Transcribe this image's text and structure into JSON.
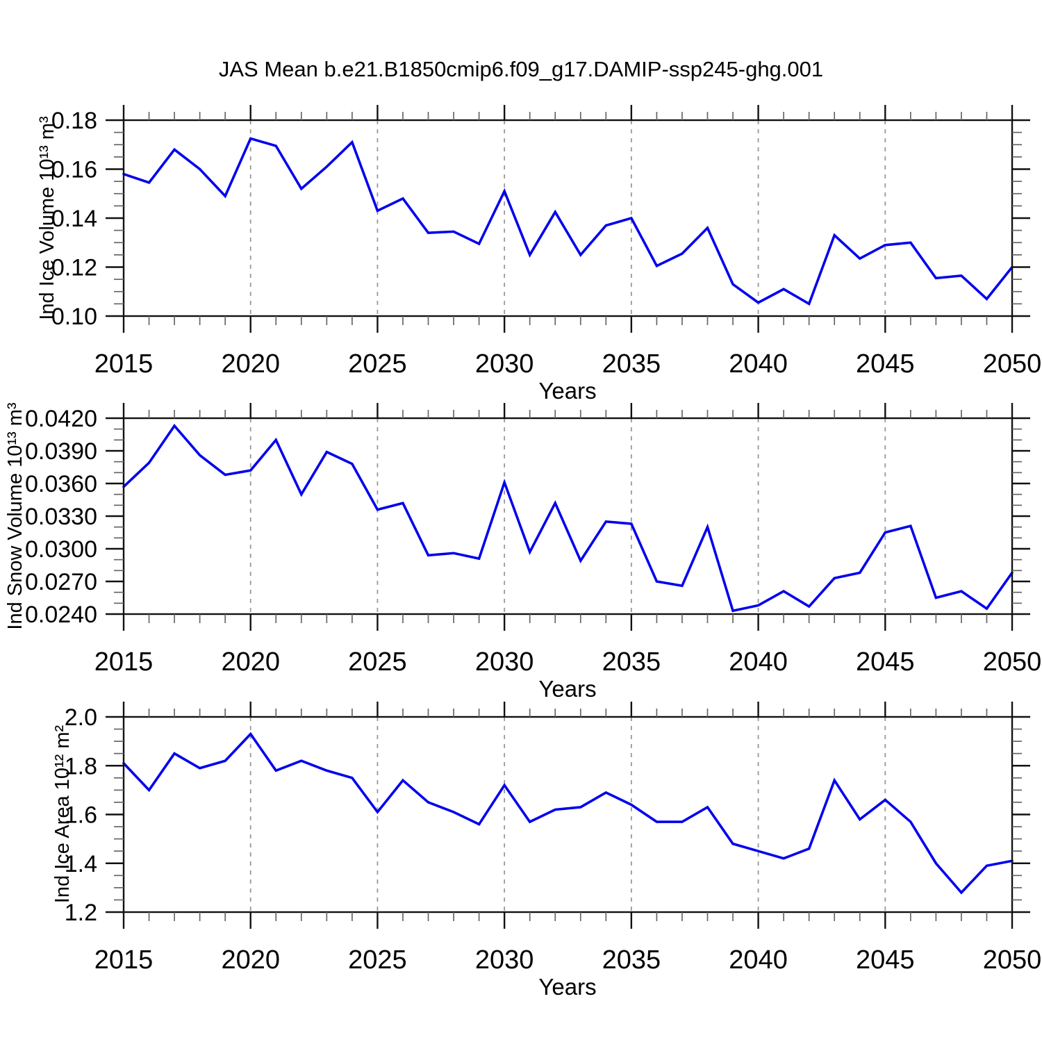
{
  "style": {
    "line_color": "#0000ee",
    "grid_color": "#999999",
    "axis_color": "#111111",
    "minor_tick_color": "#666666",
    "text_color": "#000000",
    "background": "#ffffff"
  },
  "chart_data": {
    "type": "line",
    "title": "JAS Mean b.e21.B1850cmip6.f09_g17.DAMIP-ssp245-ghg.001",
    "x_label": "Years",
    "x": [
      2015,
      2016,
      2017,
      2018,
      2019,
      2020,
      2021,
      2022,
      2023,
      2024,
      2025,
      2026,
      2027,
      2028,
      2029,
      2030,
      2031,
      2032,
      2033,
      2034,
      2035,
      2036,
      2037,
      2038,
      2039,
      2040,
      2041,
      2042,
      2043,
      2044,
      2045,
      2046,
      2047,
      2048,
      2049,
      2050
    ],
    "xlim": [
      2015,
      2050
    ],
    "x_major_ticks": [
      2015,
      2020,
      2025,
      2030,
      2035,
      2040,
      2045,
      2050
    ],
    "x_tick_labels": [
      "2015",
      "2020",
      "2025",
      "2030",
      "2035",
      "2040",
      "2045",
      "2050"
    ],
    "x_minor_step": 1,
    "grid_x": [
      2020,
      2025,
      2030,
      2035,
      2040,
      2045
    ],
    "grid_style": "dashed",
    "legend": "none",
    "panels": [
      {
        "name": "ind-ice-volume",
        "ylabel": "Ind Ice Volume 10¹³ m³",
        "ylim": [
          0.1,
          0.18
        ],
        "yticks": [
          0.1,
          0.12,
          0.14,
          0.16,
          0.18
        ],
        "ytick_labels": [
          "0.10",
          "0.12",
          "0.14",
          "0.16",
          "0.18"
        ],
        "y_minor_step": 0.005,
        "values": [
          0.158,
          0.1545,
          0.168,
          0.16,
          0.149,
          0.1725,
          0.1695,
          0.152,
          0.161,
          0.171,
          0.143,
          0.148,
          0.134,
          0.1345,
          0.1295,
          0.151,
          0.125,
          0.1425,
          0.125,
          0.137,
          0.14,
          0.1205,
          0.1255,
          0.136,
          0.113,
          0.1055,
          0.111,
          0.105,
          0.133,
          0.1235,
          0.129,
          0.13,
          0.1155,
          0.1165,
          0.107,
          0.12
        ]
      },
      {
        "name": "ind-snow-volume",
        "ylabel": "Ind Snow Volume 10¹³ m³",
        "ylabel_clipped": true,
        "ylim": [
          0.024,
          0.042
        ],
        "yticks": [
          0.024,
          0.027,
          0.03,
          0.033,
          0.036,
          0.039,
          0.042
        ],
        "ytick_labels": [
          "0.0240",
          "0.0270",
          "0.0300",
          "0.0330",
          "0.0360",
          "0.0390",
          "0.0420"
        ],
        "y_minor_step": 0.001,
        "values": [
          0.0357,
          0.0379,
          0.0413,
          0.0386,
          0.0368,
          0.0372,
          0.04,
          0.035,
          0.0389,
          0.0378,
          0.0336,
          0.0342,
          0.0294,
          0.0296,
          0.0291,
          0.0361,
          0.0297,
          0.0342,
          0.0289,
          0.0325,
          0.0323,
          0.027,
          0.0266,
          0.032,
          0.0243,
          0.0248,
          0.0261,
          0.0247,
          0.0273,
          0.0278,
          0.0315,
          0.0321,
          0.0255,
          0.0261,
          0.0245,
          0.0278
        ]
      },
      {
        "name": "ind-ice-area",
        "ylabel": "Ind Ice Area 10¹² m²",
        "ylim": [
          1.2,
          2.0
        ],
        "yticks": [
          1.2,
          1.4,
          1.6,
          1.8,
          2.0
        ],
        "ytick_labels": [
          "1.2",
          "1.4",
          "1.6",
          "1.8",
          "2.0"
        ],
        "y_minor_step": 0.05,
        "values": [
          1.81,
          1.7,
          1.85,
          1.79,
          1.82,
          1.93,
          1.78,
          1.82,
          1.78,
          1.75,
          1.61,
          1.74,
          1.65,
          1.61,
          1.56,
          1.72,
          1.57,
          1.62,
          1.63,
          1.69,
          1.64,
          1.57,
          1.57,
          1.63,
          1.48,
          1.45,
          1.42,
          1.46,
          1.74,
          1.58,
          1.66,
          1.57,
          1.4,
          1.28,
          1.39,
          1.41
        ]
      }
    ]
  }
}
